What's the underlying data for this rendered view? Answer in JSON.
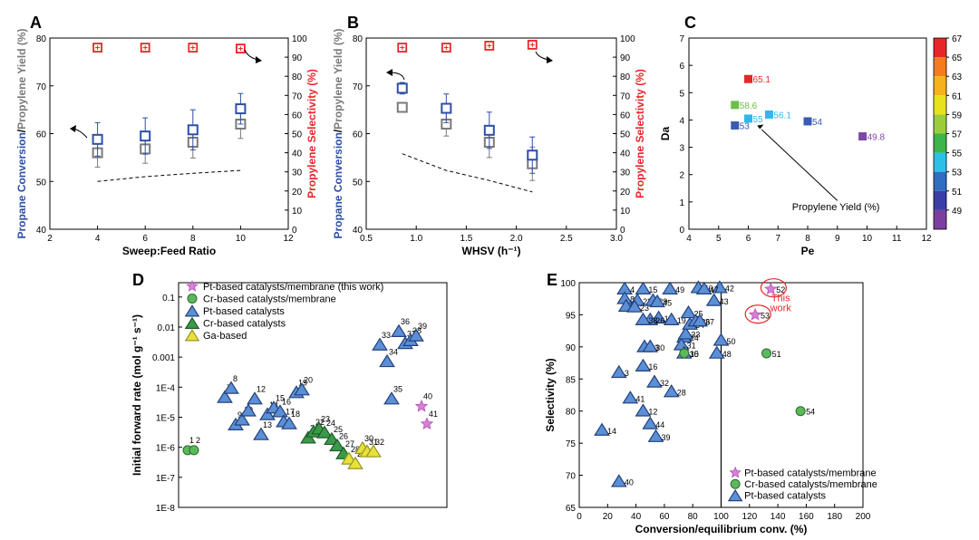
{
  "colors": {
    "blue": "#2f4fa6",
    "gray": "#7a7a7a",
    "red": "#e8262a",
    "pt_tri": "#5b8fd6",
    "cr_tri": "#3a9a4a",
    "ga_tri": "#e6e23a",
    "pink": "#d980d8",
    "cr_circ": "#5cb85c"
  },
  "chart_data": [
    {
      "panel": "A",
      "type": "scatter",
      "xlabel": "Sweep:Feed Ratio",
      "ylabel_left_parts": [
        "Propane Conversion",
        "/",
        "Propylene Yield (%)"
      ],
      "ylabel_right": "Propylene Selectivity (%)",
      "xlim": [
        2,
        12
      ],
      "ylim_left": [
        40,
        80
      ],
      "ylim_right": [
        0,
        100
      ],
      "xticks": [
        2,
        4,
        6,
        8,
        10,
        12
      ],
      "yticks_left": [
        40,
        50,
        60,
        70,
        80
      ],
      "yticks_right": [
        0,
        10,
        20,
        30,
        40,
        50,
        60,
        70,
        80,
        90,
        100
      ],
      "series": [
        {
          "name": "Propane Conversion",
          "x": [
            4,
            6,
            8,
            10
          ],
          "y": [
            58.8,
            59.5,
            60.8,
            65.2
          ],
          "err": [
            3.5,
            3.8,
            4.2,
            3.2
          ]
        },
        {
          "name": "Propylene Yield",
          "x": [
            4,
            6,
            8,
            10
          ],
          "y": [
            56.0,
            56.8,
            58.2,
            62.0
          ],
          "err": [
            3.0,
            3.0,
            3.3,
            3.0
          ]
        },
        {
          "name": "Propylene Selectivity",
          "x": [
            4,
            6,
            8,
            10
          ],
          "y": [
            95,
            95,
            95,
            94.5
          ]
        },
        {
          "name": "Equilibrium (dashed)",
          "x": [
            4,
            6,
            8,
            10
          ],
          "y": [
            50,
            51.0,
            51.7,
            52.3
          ]
        }
      ]
    },
    {
      "panel": "B",
      "type": "scatter",
      "xlabel": "WHSV (h⁻¹)",
      "ylabel_left_parts": [
        "Propane Conversion",
        "/",
        "Propylene Yield (%)"
      ],
      "ylabel_right": "Propylene Selectivity (%)",
      "xlim": [
        0.5,
        3.0
      ],
      "ylim_left": [
        40,
        80
      ],
      "ylim_right": [
        0,
        100
      ],
      "xticks": [
        "0.5",
        "1.0",
        "1.5",
        "2.0",
        "2.5",
        "3.0"
      ],
      "yticks_left": [
        40,
        50,
        60,
        70,
        80
      ],
      "yticks_right": [
        0,
        10,
        20,
        30,
        40,
        50,
        60,
        70,
        80,
        90,
        100
      ],
      "series": [
        {
          "name": "Propane Conversion",
          "x": [
            0.86,
            1.3,
            1.73,
            2.16
          ],
          "y": [
            69.5,
            65.3,
            60.7,
            55.5
          ],
          "err": [
            1.2,
            3.0,
            3.8,
            3.8
          ]
        },
        {
          "name": "Propylene Yield",
          "x": [
            0.86,
            1.3,
            1.73,
            2.16
          ],
          "y": [
            65.5,
            62.0,
            58.2,
            53.7
          ],
          "err": [
            1.0,
            2.5,
            3.2,
            3.5
          ]
        },
        {
          "name": "Propylene Selectivity",
          "x": [
            0.86,
            1.3,
            1.73,
            2.16
          ],
          "y": [
            95,
            95,
            96,
            96.5
          ]
        },
        {
          "name": "Equilibrium (dashed)",
          "x": [
            0.86,
            1.3,
            1.73,
            2.16
          ],
          "y": [
            55.8,
            52.3,
            50.2,
            47.8
          ]
        }
      ]
    },
    {
      "panel": "C",
      "type": "scatter",
      "xlabel": "Pe",
      "ylabel": "Da",
      "xlim": [
        4,
        12
      ],
      "ylim": [
        0,
        7
      ],
      "xticks": [
        4,
        5,
        6,
        7,
        8,
        9,
        10,
        11,
        12
      ],
      "yticks": [
        0,
        1,
        2,
        3,
        4,
        5,
        6,
        7
      ],
      "points": [
        {
          "x": 6.0,
          "y": 5.5,
          "label": "65.1",
          "color": "#e8262a"
        },
        {
          "x": 5.55,
          "y": 4.55,
          "label": "58.6",
          "color": "#6cc04a"
        },
        {
          "x": 6.0,
          "y": 4.05,
          "label": "55",
          "color": "#32b8e8"
        },
        {
          "x": 6.7,
          "y": 4.2,
          "label": "56.1",
          "color": "#32b8e8"
        },
        {
          "x": 5.55,
          "y": 3.8,
          "label": "53",
          "color": "#3a5bb5"
        },
        {
          "x": 8.0,
          "y": 3.95,
          "label": "54",
          "color": "#3a5bb5"
        },
        {
          "x": 9.85,
          "y": 3.4,
          "label": "49.8",
          "color": "#7b4aa6"
        }
      ],
      "annotation": "Propylene Yield (%)",
      "colorbar": {
        "ticks": [
          67,
          65,
          63,
          61,
          59,
          57,
          55,
          53,
          51,
          49
        ],
        "colors": [
          "#e8262a",
          "#f47c20",
          "#f6b21a",
          "#e8e21e",
          "#9acd3c",
          "#3cb54a",
          "#2ac0e8",
          "#2f6ec2",
          "#3a3ea6",
          "#7b3fa0"
        ]
      }
    },
    {
      "panel": "D",
      "type": "scatter",
      "ylabel": "Initial forward rate (mol g⁻¹ s⁻¹)",
      "yscale": "log",
      "ylim": [
        1e-08,
        0.3
      ],
      "yticks": [
        "0.1",
        "0.01",
        "0.001",
        "1E-4",
        "1E-5",
        "1E-6",
        "1E-7",
        "1E-8"
      ],
      "legend": [
        "Pt-based catalysts/membrane (this work)",
        "Cr-based catalysts/membrane",
        "Pt-based catalysts",
        "Cr-based catalysts",
        "Ga-based"
      ],
      "points": [
        {
          "n": "1",
          "g": "crm",
          "y": 8e-07
        },
        {
          "n": "2",
          "g": "crm",
          "y": 8e-07
        },
        {
          "n": "7",
          "g": "pt",
          "y": 4.5e-05
        },
        {
          "n": "8",
          "g": "pt",
          "y": 9e-05
        },
        {
          "n": "9",
          "g": "pt",
          "y": 5.5e-06
        },
        {
          "n": "10",
          "g": "pt",
          "y": 8e-06
        },
        {
          "n": "11",
          "g": "pt",
          "y": 1.6e-05
        },
        {
          "n": "12",
          "g": "pt",
          "y": 4e-05
        },
        {
          "n": "13",
          "g": "pt",
          "y": 2.6e-06
        },
        {
          "n": "14",
          "g": "pt",
          "y": 1.2e-05
        },
        {
          "n": "15",
          "g": "pt",
          "y": 2e-05
        },
        {
          "n": "16",
          "g": "pt",
          "y": 1.5e-05
        },
        {
          "n": "17",
          "g": "pt",
          "y": 7e-06
        },
        {
          "n": "18",
          "g": "pt",
          "y": 6e-06
        },
        {
          "n": "19",
          "g": "pt",
          "y": 6.5e-05
        },
        {
          "n": "20",
          "g": "pt",
          "y": 8e-05
        },
        {
          "n": "21",
          "g": "cr",
          "y": 2e-06
        },
        {
          "n": "22",
          "g": "cr",
          "y": 3.2e-06
        },
        {
          "n": "23",
          "g": "cr",
          "y": 4e-06
        },
        {
          "n": "24",
          "g": "cr",
          "y": 3e-06
        },
        {
          "n": "25",
          "g": "cr",
          "y": 1.8e-06
        },
        {
          "n": "26",
          "g": "cr",
          "y": 1.1e-06
        },
        {
          "n": "27",
          "g": "cr",
          "y": 6e-07
        },
        {
          "n": "28",
          "g": "ga",
          "y": 4e-07
        },
        {
          "n": "29",
          "g": "ga",
          "y": 2.8e-07
        },
        {
          "n": "30",
          "g": "ga",
          "y": 9e-07
        },
        {
          "n": "31",
          "g": "ga",
          "y": 7e-07
        },
        {
          "n": "32",
          "g": "ga",
          "y": 7e-07
        },
        {
          "n": "33",
          "g": "pt",
          "y": 0.0025
        },
        {
          "n": "34",
          "g": "pt",
          "y": 0.0007
        },
        {
          "n": "35",
          "g": "pt",
          "y": 4e-05
        },
        {
          "n": "36",
          "g": "pt",
          "y": 0.007
        },
        {
          "n": "37",
          "g": "pt",
          "y": 0.0028
        },
        {
          "n": "38",
          "g": "pt",
          "y": 0.0035
        },
        {
          "n": "39",
          "g": "pt",
          "y": 0.005
        },
        {
          "n": "40",
          "g": "ptm",
          "y": 2.3e-05
        },
        {
          "n": "41",
          "g": "ptm",
          "y": 6e-06
        }
      ]
    },
    {
      "panel": "E",
      "type": "scatter",
      "xlabel": "Conversion/equilibrium conv. (%)",
      "ylabel": "Selectivity (%)",
      "xlim": [
        0,
        200
      ],
      "ylim": [
        65,
        100
      ],
      "xticks": [
        0,
        20,
        40,
        60,
        80,
        100,
        120,
        140,
        160,
        180,
        200
      ],
      "yticks": [
        65,
        70,
        75,
        80,
        85,
        90,
        95,
        100
      ],
      "vline": 100,
      "legend": [
        "Pt-based catalysts/membrane",
        "Cr-based catalysts/membrane",
        "Pt-based catalysts"
      ],
      "this_work_label": [
        "This",
        "work"
      ],
      "points": [
        {
          "n": "3",
          "g": "pt",
          "x": 28,
          "y": 86
        },
        {
          "n": "4",
          "g": "pt",
          "x": 32,
          "y": 99
        },
        {
          "n": "8",
          "g": "pt",
          "x": 32,
          "y": 97.5
        },
        {
          "n": "5",
          "g": "pt",
          "x": 33,
          "y": 96.3
        },
        {
          "n": "12",
          "g": "pt",
          "x": 45,
          "y": 80
        },
        {
          "n": "13",
          "g": "pt",
          "x": 46,
          "y": 90
        },
        {
          "n": "14",
          "g": "pt",
          "x": 16,
          "y": 77
        },
        {
          "n": "15",
          "g": "pt",
          "x": 45,
          "y": 99
        },
        {
          "n": "16",
          "g": "pt",
          "x": 45,
          "y": 87
        },
        {
          "n": "18",
          "g": "pt",
          "x": 56,
          "y": 94.5
        },
        {
          "n": "19",
          "g": "pt",
          "x": 65,
          "y": 94.2
        },
        {
          "n": "22",
          "g": "pt",
          "x": 41,
          "y": 97.2
        },
        {
          "n": "23",
          "g": "pt",
          "x": 39,
          "y": 96.2
        },
        {
          "n": "24",
          "g": "pt",
          "x": 74,
          "y": 91.5
        },
        {
          "n": "25",
          "g": "pt",
          "x": 77,
          "y": 95.3
        },
        {
          "n": "26",
          "g": "pt",
          "x": 50,
          "y": 94.2
        },
        {
          "n": "28",
          "g": "pt",
          "x": 65,
          "y": 83
        },
        {
          "n": "29",
          "g": "pt",
          "x": 52,
          "y": 97.2
        },
        {
          "n": "30",
          "g": "pt",
          "x": 50,
          "y": 90
        },
        {
          "n": "31",
          "g": "pt",
          "x": 72,
          "y": 90.3
        },
        {
          "n": "32",
          "g": "pt",
          "x": 53,
          "y": 84.5
        },
        {
          "n": "33",
          "g": "pt",
          "x": 75,
          "y": 92
        },
        {
          "n": "34",
          "g": "pt",
          "x": 78,
          "y": 93.5
        },
        {
          "n": "35",
          "g": "pt",
          "x": 74,
          "y": 89
        },
        {
          "n": "36",
          "g": "pt",
          "x": 82,
          "y": 94
        },
        {
          "n": "37",
          "g": "pt",
          "x": 85,
          "y": 94
        },
        {
          "n": "38",
          "g": "pt",
          "x": 45,
          "y": 94.2
        },
        {
          "n": "39",
          "g": "pt",
          "x": 54,
          "y": 76
        },
        {
          "n": "40",
          "g": "pt",
          "x": 28,
          "y": 69
        },
        {
          "n": "41",
          "g": "pt",
          "x": 36,
          "y": 82
        },
        {
          "n": "42",
          "g": "pt",
          "x": 99,
          "y": 99.2
        },
        {
          "n": "43",
          "g": "pt",
          "x": 95,
          "y": 97.2
        },
        {
          "n": "44",
          "g": "pt",
          "x": 50,
          "y": 78
        },
        {
          "n": "45",
          "g": "pt",
          "x": 55,
          "y": 97
        },
        {
          "n": "46",
          "g": "pt",
          "x": 84,
          "y": 99.2
        },
        {
          "n": "47",
          "g": "pt",
          "x": 88,
          "y": 99
        },
        {
          "n": "48",
          "g": "pt",
          "x": 97,
          "y": 89
        },
        {
          "n": "49",
          "g": "pt",
          "x": 64,
          "y": 99
        },
        {
          "n": "50",
          "g": "pt",
          "x": 100,
          "y": 91
        },
        {
          "n": "10",
          "g": "crm",
          "x": 74,
          "y": 89
        },
        {
          "n": "51",
          "g": "crm",
          "x": 132,
          "y": 89
        },
        {
          "n": "54",
          "g": "crm",
          "x": 156,
          "y": 80
        },
        {
          "n": "52",
          "g": "ptm",
          "x": 135,
          "y": 99
        },
        {
          "n": "53",
          "g": "ptm",
          "x": 124,
          "y": 95
        }
      ]
    }
  ]
}
